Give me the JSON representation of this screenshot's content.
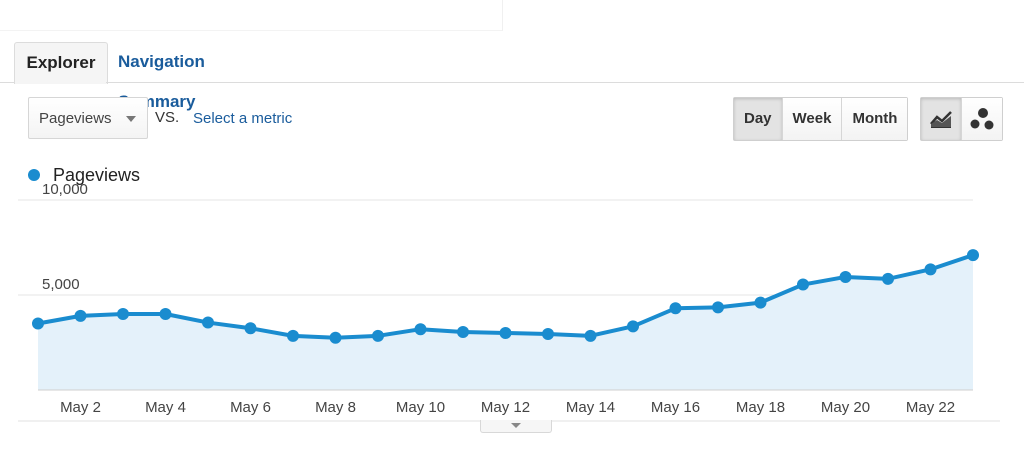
{
  "tabs": [
    {
      "label": "Explorer",
      "active": true
    },
    {
      "label": "Navigation Summary",
      "active": false
    }
  ],
  "controls": {
    "metric": "Pageviews",
    "vs_label": "VS.",
    "select_metric": "Select a metric",
    "ranges": [
      {
        "label": "Day",
        "active": true
      },
      {
        "label": "Week",
        "active": false
      },
      {
        "label": "Month",
        "active": false
      }
    ],
    "views": [
      {
        "icon": "line-chart-icon",
        "active": true
      },
      {
        "icon": "motion-chart-icon",
        "active": false
      }
    ]
  },
  "legend": {
    "label": "Pageviews",
    "color": "#1a8ccf"
  },
  "chart_data": {
    "type": "area",
    "series": [
      {
        "name": "Pageviews",
        "color": "#1a8ccf",
        "fill": "#e4f1fa",
        "values": [
          3500,
          3900,
          4000,
          4000,
          3550,
          3250,
          2850,
          2750,
          2850,
          3200,
          3050,
          3000,
          2950,
          2850,
          3350,
          4300,
          4350,
          4600,
          5550,
          5950,
          5850,
          6350,
          7100
        ]
      }
    ],
    "x": [
      "May 1",
      "May 2",
      "May 3",
      "May 4",
      "May 5",
      "May 6",
      "May 7",
      "May 8",
      "May 9",
      "May 10",
      "May 11",
      "May 12",
      "May 13",
      "May 14",
      "May 15",
      "May 16",
      "May 17",
      "May 18",
      "May 19",
      "May 20",
      "May 21",
      "May 22",
      "May 23"
    ],
    "x_tick_labels": [
      "May 2",
      "May 4",
      "May 6",
      "May 8",
      "May 10",
      "May 12",
      "May 14",
      "May 16",
      "May 18",
      "May 20",
      "May 22"
    ],
    "y_tick_labels": [
      "10,000",
      "5,000"
    ],
    "y_ticks": [
      10000,
      5000
    ],
    "ylim": [
      0,
      10000
    ],
    "grid": true
  }
}
